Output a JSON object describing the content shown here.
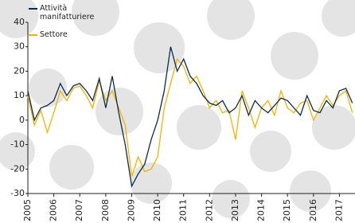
{
  "chart_data": {
    "type": "line",
    "x": [
      2005,
      2005.25,
      2005.5,
      2005.75,
      2006,
      2006.25,
      2006.5,
      2006.75,
      2007,
      2007.25,
      2007.5,
      2007.75,
      2008,
      2008.25,
      2008.5,
      2008.75,
      2009,
      2009.25,
      2009.5,
      2009.75,
      2010,
      2010.25,
      2010.5,
      2010.75,
      2011,
      2011.25,
      2011.5,
      2011.75,
      2012,
      2012.25,
      2012.5,
      2012.75,
      2013,
      2013.25,
      2013.5,
      2013.75,
      2014,
      2014.25,
      2014.5,
      2014.75,
      2015,
      2015.25,
      2015.5,
      2015.75,
      2016,
      2016.25,
      2016.5,
      2016.75,
      2017,
      2017.25,
      2017.5
    ],
    "series": [
      {
        "name": "Attività manifatturiere",
        "color": "#0d2a4f",
        "values": [
          12,
          0,
          5,
          6,
          8,
          15,
          10,
          14,
          15,
          12,
          8,
          17,
          5,
          18,
          3,
          -10,
          -27,
          -22,
          -18,
          -8,
          0,
          12,
          30,
          20,
          25,
          18,
          15,
          10,
          7,
          6,
          8,
          3,
          5,
          10,
          2,
          8,
          5,
          3,
          6,
          9,
          8,
          5,
          2,
          10,
          4,
          3,
          8,
          5,
          12,
          13,
          7
        ]
      },
      {
        "name": "Settore",
        "color": "#f0b400",
        "values": [
          10,
          -2,
          4,
          -5,
          3,
          12,
          8,
          13,
          14,
          10,
          5,
          16,
          8,
          12,
          5,
          -2,
          -23,
          -15,
          -21,
          -20,
          -15,
          5,
          15,
          25,
          22,
          15,
          18,
          12,
          5,
          8,
          3,
          4,
          -8,
          12,
          5,
          -3,
          5,
          8,
          2,
          12,
          5,
          3,
          7,
          8,
          0,
          5,
          10,
          6,
          10,
          12,
          3
        ]
      }
    ],
    "xlim": [
      2005,
      2017.6
    ],
    "xticks": [
      2005,
      2006,
      2007,
      2008,
      2009,
      2010,
      2011,
      2012,
      2013,
      2014,
      2015,
      2016,
      2017
    ],
    "ylim": [
      -30,
      40
    ],
    "yticks": [
      -30,
      -20,
      -10,
      0,
      10,
      20,
      30,
      40
    ]
  }
}
